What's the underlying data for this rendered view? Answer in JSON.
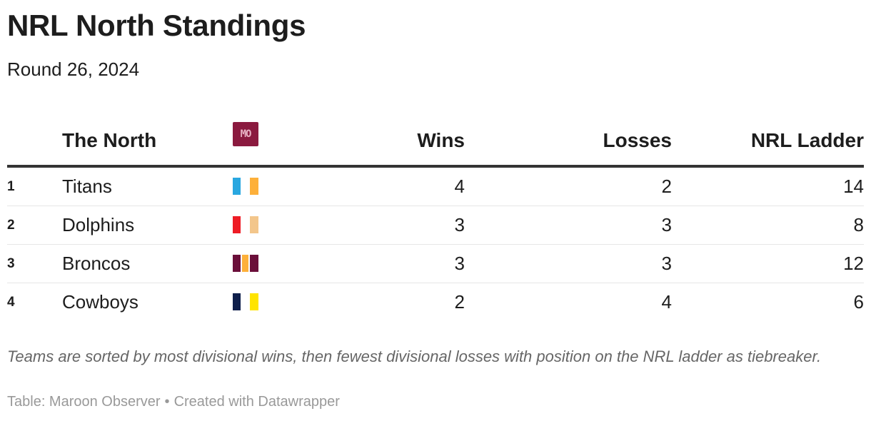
{
  "title": "NRL North Standings",
  "subtitle": "Round 26, 2024",
  "header": {
    "team": "The North",
    "logo_text": "MO",
    "logo_color": "#8b1a3f",
    "wins": "Wins",
    "losses": "Losses",
    "ladder": "NRL Ladder"
  },
  "chart_data": {
    "type": "table",
    "columns": [
      "",
      "The North",
      "",
      "Wins",
      "Losses",
      "NRL Ladder"
    ],
    "rows": [
      {
        "rank": "1",
        "team": "Titans",
        "colors": [
          "#29a7e0",
          "#fdb03a"
        ],
        "wins": 4,
        "losses": 2,
        "ladder": 14
      },
      {
        "rank": "2",
        "team": "Dolphins",
        "colors": [
          "#ee1c25",
          "#f3c68b"
        ],
        "wins": 3,
        "losses": 3,
        "ladder": 8
      },
      {
        "rank": "3",
        "team": "Broncos",
        "colors": [
          "#6b0f3a",
          "#fdb03a",
          "#6b0f3a"
        ],
        "wins": 3,
        "losses": 3,
        "ladder": 12
      },
      {
        "rank": "4",
        "team": "Cowboys",
        "colors": [
          "#0f1f4b",
          "#ffe400"
        ],
        "wins": 2,
        "losses": 4,
        "ladder": 6
      }
    ]
  },
  "notes": "Teams are sorted by most divisional wins, then fewest divisional losses with position on the NRL ladder as tiebreaker.",
  "source": {
    "label": "Table: Maroon Observer",
    "separator": "•",
    "credit": "Created with Datawrapper"
  }
}
